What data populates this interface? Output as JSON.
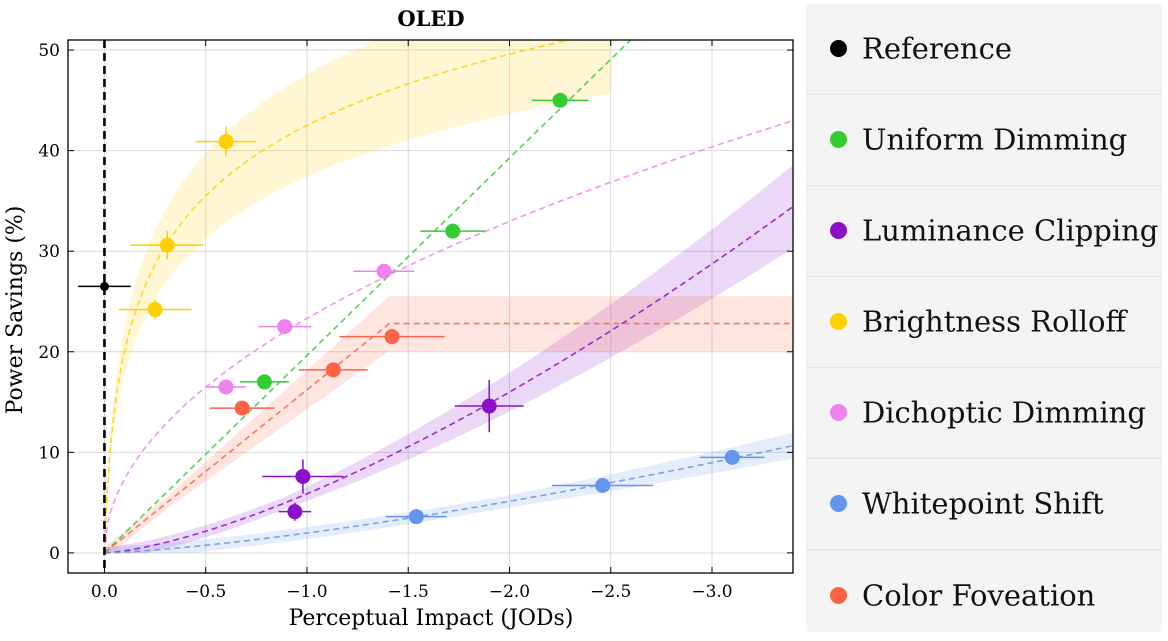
{
  "chart_data": {
    "type": "scatter",
    "title": "OLED",
    "xlabel": "Perceptual Impact (JODs)",
    "ylabel": "Power Savings (%)",
    "xlim": [
      0.18,
      -3.4
    ],
    "ylim": [
      -2,
      51
    ],
    "x_direction": "reversed",
    "grid": true,
    "legend_position": "right, outside plot",
    "xticks": [
      0.0,
      -0.5,
      -1.0,
      -1.5,
      -2.0,
      -2.5,
      -3.0
    ],
    "xtick_labels": [
      "0.0",
      "−0.5",
      "−1.0",
      "−1.5",
      "−2.0",
      "−2.5",
      "−3.0"
    ],
    "yticks": [
      0,
      10,
      20,
      30,
      40,
      50
    ],
    "ytick_labels": [
      "0",
      "10",
      "20",
      "30",
      "40",
      "50"
    ],
    "reference_line": {
      "x": 0.0,
      "style": "dashed",
      "color": "#000000"
    },
    "series": [
      {
        "name": "Reference",
        "color": "#000000",
        "points": [
          {
            "x": 0.0,
            "y": 26.5,
            "xerr": 0.13,
            "yerr": 0
          }
        ]
      },
      {
        "name": "Uniform Dimming",
        "color": "#33cc33",
        "fit": {
          "kind": "linear",
          "x_end": -2.6
        },
        "points": [
          {
            "x": -0.79,
            "y": 17.0,
            "xerr": 0.12,
            "yerr": 0
          },
          {
            "x": -1.72,
            "y": 32.0,
            "xerr": 0.16,
            "yerr": 0
          },
          {
            "x": -2.25,
            "y": 45.0,
            "xerr": 0.14,
            "yerr": 0
          }
        ]
      },
      {
        "name": "Luminance Clipping",
        "color": "#8b10c8",
        "fit": {
          "kind": "power",
          "x_end": -3.4,
          "band": true
        },
        "points": [
          {
            "x": -0.94,
            "y": 4.1,
            "xerr": 0.08,
            "yerr": 0.9
          },
          {
            "x": -0.98,
            "y": 7.6,
            "xerr": 0.2,
            "yerr": 1.7
          },
          {
            "x": -1.9,
            "y": 14.6,
            "xerr": 0.17,
            "yerr": 2.6
          }
        ]
      },
      {
        "name": "Brightness Rolloff",
        "color": "#ffd000",
        "fit": {
          "kind": "log",
          "x_end": -2.5,
          "band": true
        },
        "points": [
          {
            "x": -0.25,
            "y": 24.2,
            "xerr": 0.18,
            "yerr": 1.0
          },
          {
            "x": -0.31,
            "y": 30.6,
            "xerr": 0.18,
            "yerr": 1.4
          },
          {
            "x": -0.6,
            "y": 40.9,
            "xerr": 0.15,
            "yerr": 1.5
          }
        ]
      },
      {
        "name": "Dichoptic Dimming",
        "color": "#ee82ee",
        "fit": {
          "kind": "sqrt",
          "x_end": -3.4
        },
        "points": [
          {
            "x": -0.6,
            "y": 16.5,
            "xerr": 0.1,
            "yerr": 0
          },
          {
            "x": -0.89,
            "y": 22.5,
            "xerr": 0.13,
            "yerr": 0
          },
          {
            "x": -1.38,
            "y": 28.0,
            "xerr": 0.15,
            "yerr": 0
          }
        ]
      },
      {
        "name": "Whitepoint Shift",
        "color": "#6495ed",
        "fit": {
          "kind": "power",
          "x_end": -3.4,
          "band": true
        },
        "points": [
          {
            "x": -1.54,
            "y": 3.6,
            "xerr": 0.15,
            "yerr": 0
          },
          {
            "x": -2.46,
            "y": 6.7,
            "xerr": 0.25,
            "yerr": 0
          },
          {
            "x": -3.1,
            "y": 9.5,
            "xerr": 0.16,
            "yerr": 0
          }
        ]
      },
      {
        "name": "Color Foveation",
        "color": "#ff6347",
        "fit": {
          "kind": "saturating",
          "x_end": -3.4,
          "plateau": 22.8,
          "band": true
        },
        "points": [
          {
            "x": -0.68,
            "y": 14.4,
            "xerr": 0.16,
            "yerr": 0
          },
          {
            "x": -1.13,
            "y": 18.2,
            "xerr": 0.17,
            "yerr": 0
          },
          {
            "x": -1.42,
            "y": 21.5,
            "xerr": 0.26,
            "yerr": 0
          }
        ]
      }
    ]
  },
  "legend": {
    "items": [
      {
        "label": "Reference",
        "color": "#000000"
      },
      {
        "label": "Uniform Dimming",
        "color": "#33cc33"
      },
      {
        "label": "Luminance Clipping",
        "color": "#8b10c8"
      },
      {
        "label": "Brightness Rolloff",
        "color": "#ffd000"
      },
      {
        "label": "Dichoptic Dimming",
        "color": "#ee82ee"
      },
      {
        "label": "Whitepoint Shift",
        "color": "#6495ed"
      },
      {
        "label": "Color Foveation",
        "color": "#ff6347"
      }
    ]
  }
}
